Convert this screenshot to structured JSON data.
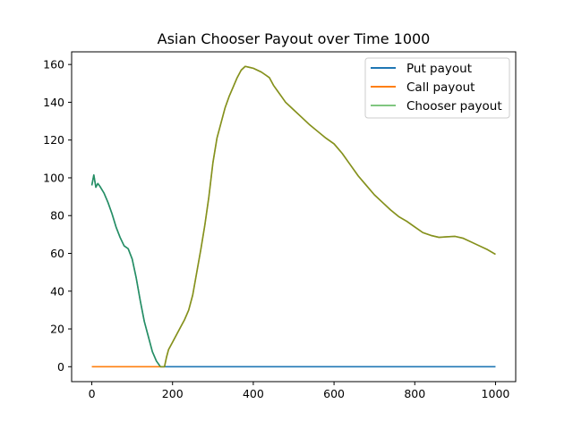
{
  "chart_data": {
    "type": "line",
    "title": "Asian Chooser Payout over Time 1000",
    "xlabel": "",
    "ylabel": "",
    "xlim": [
      -50,
      1050
    ],
    "ylim": [
      -7.9,
      166.7
    ],
    "xticks": [
      0,
      200,
      400,
      600,
      800,
      1000
    ],
    "yticks": [
      0,
      20,
      40,
      60,
      80,
      100,
      120,
      140,
      160
    ],
    "grid": false,
    "legend": "top-right",
    "series": [
      {
        "name": "Put payout",
        "color": "#1f77b4",
        "x": [
          0,
          5,
          10,
          15,
          20,
          30,
          40,
          50,
          60,
          70,
          80,
          90,
          100,
          110,
          120,
          130,
          140,
          150,
          160,
          170,
          180,
          190,
          200,
          400,
          600,
          800,
          1000
        ],
        "y": [
          96,
          101.5,
          95,
          97,
          95.5,
          92,
          87,
          81,
          74,
          68.5,
          64,
          62.5,
          57,
          47,
          35,
          24,
          16,
          8,
          3,
          0,
          0,
          0,
          0,
          0,
          0,
          0,
          0
        ]
      },
      {
        "name": "Call payout",
        "color": "#ff7f0e",
        "x": [
          0,
          100,
          175,
          180,
          185,
          190,
          200,
          210,
          220,
          230,
          240,
          250,
          260,
          270,
          280,
          290,
          300,
          310,
          320,
          330,
          340,
          350,
          360,
          370,
          380,
          390,
          400,
          410,
          420,
          430,
          440,
          450,
          460,
          470,
          480,
          500,
          520,
          540,
          560,
          580,
          600,
          620,
          640,
          660,
          680,
          700,
          720,
          740,
          760,
          780,
          800,
          820,
          840,
          860,
          880,
          900,
          920,
          940,
          960,
          980,
          1000
        ],
        "y": [
          0,
          0,
          0,
          0,
          5,
          9,
          13,
          17,
          21,
          25,
          30,
          38,
          50,
          62,
          75,
          90,
          108,
          121,
          129,
          137,
          143,
          148,
          153,
          157,
          159,
          158.5,
          158,
          157,
          156,
          154.5,
          153,
          149,
          146,
          143,
          140,
          136,
          132,
          128,
          124.5,
          121,
          118,
          113,
          107,
          101,
          96,
          91,
          87,
          83,
          79.5,
          77,
          74,
          71,
          69.5,
          68.5,
          68.8,
          69,
          68,
          66,
          64,
          62,
          59.5
        ]
      },
      {
        "name": "Chooser payout",
        "color": "#77c377",
        "x": [
          0,
          5,
          10,
          15,
          20,
          30,
          40,
          50,
          60,
          70,
          80,
          90,
          100,
          110,
          120,
          130,
          140,
          150,
          160,
          170,
          180,
          185,
          190,
          200,
          210,
          220,
          230,
          240,
          250,
          260,
          270,
          280,
          290,
          300,
          310,
          320,
          330,
          340,
          350,
          360,
          370,
          380,
          390,
          400,
          410,
          420,
          430,
          440,
          450,
          460,
          470,
          480,
          500,
          520,
          540,
          560,
          580,
          600,
          620,
          640,
          660,
          680,
          700,
          720,
          740,
          760,
          780,
          800,
          820,
          840,
          860,
          880,
          900,
          920,
          940,
          960,
          980,
          1000
        ],
        "y": [
          96,
          101.5,
          95,
          97,
          95.5,
          92,
          87,
          81,
          74,
          68.5,
          64,
          62.5,
          57,
          47,
          35,
          24,
          16,
          8,
          3,
          0,
          0,
          5,
          9,
          13,
          17,
          21,
          25,
          30,
          38,
          50,
          62,
          75,
          90,
          108,
          121,
          129,
          137,
          143,
          148,
          153,
          157,
          159,
          158.5,
          158,
          157,
          156,
          154.5,
          153,
          149,
          146,
          143,
          140,
          136,
          132,
          128,
          124.5,
          121,
          118,
          113,
          107,
          101,
          96,
          91,
          87,
          83,
          79.5,
          77,
          74,
          71,
          69.5,
          68.5,
          68.8,
          69,
          68,
          66,
          64,
          62,
          59.5
        ]
      }
    ]
  }
}
